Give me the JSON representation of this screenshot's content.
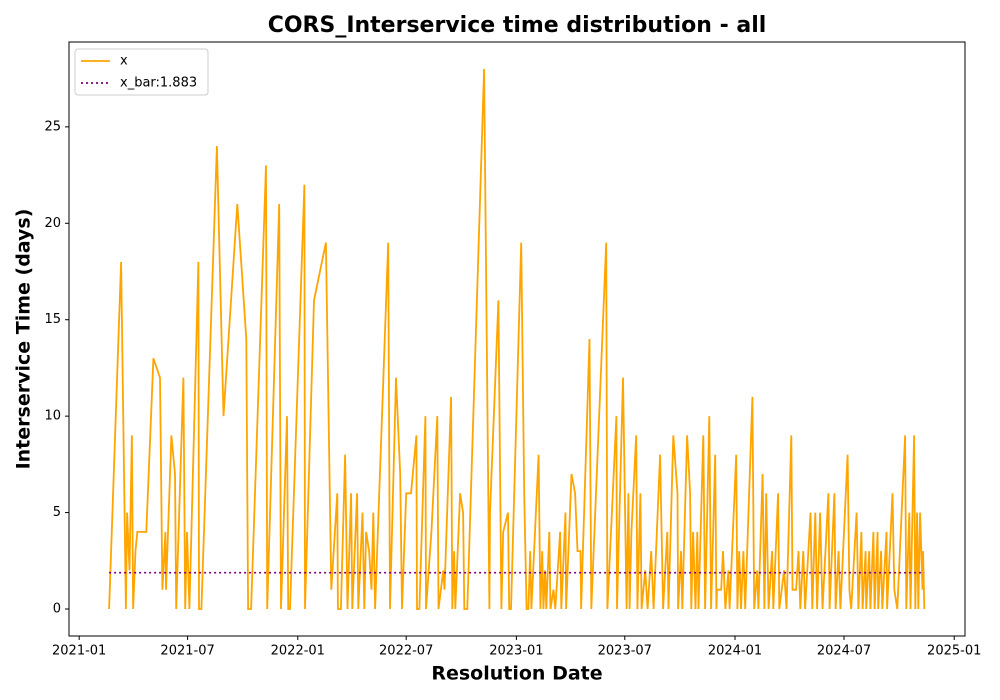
{
  "chart_data": {
    "type": "line",
    "title": "CORS_Interservice time distribution - all",
    "x_label": "Resolution Date",
    "y_label": "Interservice Time (days)",
    "xlim": [
      "2020-12-15",
      "2025-01-19"
    ],
    "xticks": [
      {
        "value": "2021-01-01",
        "label": "2021-01"
      },
      {
        "value": "2021-07-01",
        "label": "2021-07"
      },
      {
        "value": "2022-01-01",
        "label": "2022-01"
      },
      {
        "value": "2022-07-01",
        "label": "2022-07"
      },
      {
        "value": "2023-01-01",
        "label": "2023-01"
      },
      {
        "value": "2023-07-01",
        "label": "2023-07"
      },
      {
        "value": "2024-01-01",
        "label": "2024-01"
      },
      {
        "value": "2024-07-01",
        "label": "2024-07"
      },
      {
        "value": "2025-01-01",
        "label": "2025-01"
      }
    ],
    "ylim": [
      -1.4,
      29.4
    ],
    "yticks": [
      0,
      5,
      10,
      15,
      20,
      25
    ],
    "legend": "upper left",
    "series": [
      {
        "name": "x",
        "color": "orange",
        "style": "solid",
        "x": [
          "2021-02-20",
          "2021-03-12",
          "2021-03-20",
          "2021-03-22",
          "2021-03-26",
          "2021-03-30",
          "2021-04-01",
          "2021-04-05",
          "2021-04-08",
          "2021-04-23",
          "2021-05-05",
          "2021-05-16",
          "2021-05-20",
          "2021-05-25",
          "2021-05-26",
          "2021-06-04",
          "2021-06-10",
          "2021-06-12",
          "2021-06-24",
          "2021-06-27",
          "2021-06-30",
          "2021-07-04",
          "2021-07-19",
          "2021-07-20",
          "2021-07-24",
          "2021-08-19",
          "2021-08-30",
          "2021-09-22",
          "2021-10-07",
          "2021-10-10",
          "2021-10-15",
          "2021-11-09",
          "2021-11-11",
          "2021-12-01",
          "2021-12-04",
          "2021-12-14",
          "2021-12-16",
          "2021-12-19",
          "2022-01-12",
          "2022-01-13",
          "2022-01-28",
          "2022-02-17",
          "2022-02-26",
          "2022-03-08",
          "2022-03-09",
          "2022-03-14",
          "2022-03-21",
          "2022-03-25",
          "2022-03-31",
          "2022-04-02",
          "2022-04-10",
          "2022-04-12",
          "2022-04-19",
          "2022-04-22",
          "2022-04-25",
          "2022-04-30",
          "2022-05-04",
          "2022-05-07",
          "2022-05-10",
          "2022-06-01",
          "2022-06-04",
          "2022-06-14",
          "2022-06-21",
          "2022-06-24",
          "2022-07-01",
          "2022-07-09",
          "2022-07-18",
          "2022-07-19",
          "2022-07-23",
          "2022-08-02",
          "2022-08-03",
          "2022-08-12",
          "2022-08-22",
          "2022-08-24",
          "2022-09-01",
          "2022-09-03",
          "2022-09-14",
          "2022-09-16",
          "2022-09-19",
          "2022-09-21",
          "2022-09-29",
          "2022-10-04",
          "2022-10-06",
          "2022-10-11",
          "2022-10-16",
          "2022-11-08",
          "2022-11-17",
          "2022-11-18",
          "2022-12-02",
          "2022-12-07",
          "2022-12-10",
          "2022-12-18",
          "2022-12-20",
          "2022-12-23",
          "2023-01-09",
          "2023-01-14",
          "2023-01-18",
          "2023-01-21",
          "2023-01-24",
          "2023-01-26",
          "2023-02-07",
          "2023-02-10",
          "2023-02-13",
          "2023-02-15",
          "2023-02-18",
          "2023-02-20",
          "2023-02-25",
          "2023-02-27",
          "2023-03-04",
          "2023-03-07",
          "2023-03-15",
          "2023-03-17",
          "2023-03-24",
          "2023-03-25",
          "2023-04-03",
          "2023-04-09",
          "2023-04-13",
          "2023-04-18",
          "2023-04-19",
          "2023-05-03",
          "2023-05-06",
          "2023-05-31",
          "2023-06-02",
          "2023-06-17",
          "2023-06-18",
          "2023-06-28",
          "2023-07-04",
          "2023-07-07",
          "2023-07-09",
          "2023-07-12",
          "2023-07-20",
          "2023-07-22",
          "2023-07-27",
          "2023-07-29",
          "2023-08-04",
          "2023-08-08",
          "2023-08-14",
          "2023-08-18",
          "2023-08-29",
          "2023-09-03",
          "2023-09-10",
          "2023-09-12",
          "2023-09-20",
          "2023-09-27",
          "2023-09-28",
          "2023-10-03",
          "2023-10-05",
          "2023-10-13",
          "2023-10-18",
          "2023-10-20",
          "2023-10-23",
          "2023-10-27",
          "2023-10-30",
          "2023-11-01",
          "2023-11-09",
          "2023-11-12",
          "2023-11-19",
          "2023-11-22",
          "2023-11-29",
          "2023-12-01",
          "2023-12-02",
          "2023-12-09",
          "2023-12-12",
          "2023-12-16",
          "2023-12-21",
          "2023-12-23",
          "2024-01-03",
          "2024-01-05",
          "2024-01-08",
          "2024-01-11",
          "2024-01-15",
          "2024-01-18",
          "2024-01-30",
          "2024-02-02",
          "2024-02-07",
          "2024-02-09",
          "2024-02-16",
          "2024-02-19",
          "2024-02-22",
          "2024-02-26",
          "2024-03-03",
          "2024-03-05",
          "2024-03-13",
          "2024-03-15",
          "2024-03-23",
          "2024-03-27",
          "2024-04-04",
          "2024-04-06",
          "2024-04-12",
          "2024-04-16",
          "2024-04-19",
          "2024-04-24",
          "2024-04-27",
          "2024-05-06",
          "2024-05-09",
          "2024-05-14",
          "2024-05-17",
          "2024-05-22",
          "2024-05-26",
          "2024-06-05",
          "2024-06-07",
          "2024-06-15",
          "2024-06-17",
          "2024-06-22",
          "2024-06-25",
          "2024-07-07",
          "2024-07-10",
          "2024-07-13",
          "2024-07-22",
          "2024-07-25",
          "2024-07-30",
          "2024-08-01",
          "2024-08-06",
          "2024-08-07",
          "2024-08-12",
          "2024-08-14",
          "2024-08-19",
          "2024-08-21",
          "2024-08-26",
          "2024-08-27",
          "2024-09-01",
          "2024-09-03",
          "2024-09-10",
          "2024-09-11",
          "2024-09-20",
          "2024-09-23",
          "2024-09-28",
          "2024-10-11",
          "2024-10-13",
          "2024-10-18",
          "2024-10-20",
          "2024-10-26",
          "2024-10-28",
          "2024-10-31",
          "2024-11-02",
          "2024-11-05",
          "2024-11-09",
          "2024-11-10",
          "2024-11-12"
        ],
        "values": [
          0,
          18,
          0,
          5,
          2,
          9,
          0,
          3,
          4,
          4,
          13,
          12,
          1,
          4,
          1,
          9,
          7,
          0,
          12,
          0,
          4,
          0,
          18,
          0,
          0,
          24,
          10,
          21,
          14,
          0,
          0,
          23,
          0,
          21,
          0,
          10,
          0,
          0,
          22,
          0,
          16,
          19,
          1,
          6,
          0,
          0,
          8,
          0,
          6,
          0,
          6,
          0,
          5,
          0,
          4,
          3,
          1,
          5,
          0,
          19,
          0,
          12,
          7,
          0,
          6,
          6,
          9,
          0,
          0,
          10,
          0,
          4,
          10,
          0,
          2,
          1,
          11,
          0,
          3,
          0,
          6,
          5,
          0,
          0,
          5,
          28,
          0,
          5,
          16,
          0,
          4,
          5,
          0,
          0,
          19,
          6,
          0,
          0,
          3,
          0,
          8,
          0,
          3,
          0,
          2,
          0,
          4,
          0,
          1,
          0,
          4,
          0,
          5,
          0,
          7,
          6,
          3,
          3,
          0,
          14,
          0,
          19,
          0,
          10,
          0,
          12,
          0,
          6,
          0,
          4,
          9,
          0,
          6,
          0,
          2,
          0,
          3,
          0,
          8,
          0,
          4,
          0,
          9,
          6,
          0,
          3,
          0,
          9,
          6,
          0,
          4,
          0,
          4,
          0,
          9,
          0,
          10,
          0,
          8,
          0,
          1,
          1,
          3,
          0,
          2,
          0,
          8,
          0,
          3,
          0,
          3,
          0,
          11,
          0,
          2,
          0,
          7,
          0,
          6,
          0,
          3,
          0,
          6,
          0,
          2,
          0,
          9,
          1,
          1,
          3,
          0,
          3,
          0,
          5,
          0,
          5,
          0,
          5,
          0,
          6,
          0,
          6,
          0,
          3,
          0,
          8,
          1,
          0,
          5,
          0,
          4,
          0,
          3,
          0,
          3,
          0,
          4,
          0,
          4,
          0,
          3,
          0,
          4,
          0,
          6,
          1,
          0,
          9,
          0,
          5,
          0,
          9,
          0,
          5,
          0,
          5,
          1,
          3,
          0
        ]
      },
      {
        "name": "x_bar:1.883",
        "color": "purple",
        "style": "dotted",
        "x": [
          "2021-02-20",
          "2024-11-12"
        ],
        "values": [
          1.883,
          1.883
        ]
      }
    ]
  }
}
